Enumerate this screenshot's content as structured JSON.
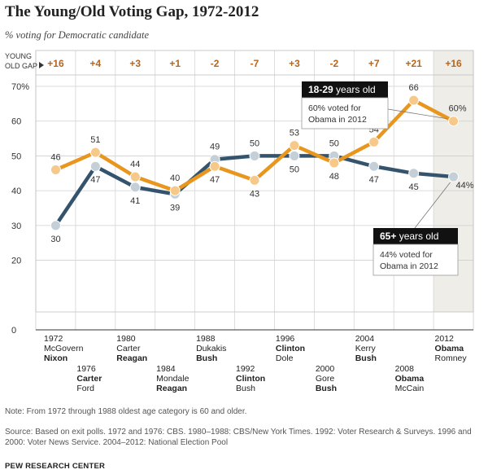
{
  "title": "The Young/Old Voting Gap, 1972-2012",
  "subtitle": "% voting for Democratic candidate",
  "gap_header": [
    "YOUNG",
    "OLD GAP"
  ],
  "colors": {
    "young": "#E8961E",
    "old": "#34546E",
    "gap": "#B5651D",
    "highlight": "#EEEDE7"
  },
  "chart_data": {
    "type": "line",
    "x": [
      1972,
      1976,
      1980,
      1984,
      1988,
      1992,
      1996,
      2000,
      2004,
      2008,
      2012
    ],
    "ylim": [
      0,
      72
    ],
    "yticks": [
      {
        "value": 0,
        "label": "0"
      },
      {
        "value": 20,
        "label": "20"
      },
      {
        "value": 30,
        "label": "30"
      },
      {
        "value": 40,
        "label": "40"
      },
      {
        "value": 50,
        "label": "50"
      },
      {
        "value": 60,
        "label": "60"
      },
      {
        "value": 70,
        "label": "70%"
      }
    ],
    "series": [
      {
        "key": "young",
        "values": [
          46,
          51,
          44,
          40,
          47,
          43,
          53,
          48,
          54,
          66,
          60
        ]
      },
      {
        "key": "old",
        "values": [
          30,
          47,
          41,
          39,
          49,
          50,
          50,
          50,
          47,
          45,
          44
        ]
      }
    ],
    "young_labels": [
      "46",
      "51",
      "44",
      "40",
      "47",
      "43",
      "53",
      "48",
      "54",
      "66",
      "60%"
    ],
    "old_labels": [
      "30",
      "47",
      "41",
      "39",
      "49",
      "50",
      "50",
      "50",
      "47",
      "45",
      "44%"
    ],
    "gap": [
      "+16",
      "+4",
      "+3",
      "+1",
      "-2",
      "-7",
      "+3",
      "-2",
      "+7",
      "+21",
      "+16"
    ],
    "elections": [
      {
        "year": "1972",
        "dem": "McGovern",
        "rep": "Nixon",
        "winner": "rep",
        "tier": "top"
      },
      {
        "year": "1976",
        "dem": "Carter",
        "rep": "Ford",
        "winner": "dem",
        "tier": "bottom"
      },
      {
        "year": "1980",
        "dem": "Carter",
        "rep": "Reagan",
        "winner": "rep",
        "tier": "top"
      },
      {
        "year": "1984",
        "dem": "Mondale",
        "rep": "Reagan",
        "winner": "rep",
        "tier": "bottom"
      },
      {
        "year": "1988",
        "dem": "Dukakis",
        "rep": "Bush",
        "winner": "rep",
        "tier": "top"
      },
      {
        "year": "1992",
        "dem": "Clinton",
        "rep": "Bush",
        "winner": "dem",
        "tier": "bottom"
      },
      {
        "year": "1996",
        "dem": "Clinton",
        "rep": "Dole",
        "winner": "dem",
        "tier": "top"
      },
      {
        "year": "2000",
        "dem": "Gore",
        "rep": "Bush",
        "winner": "rep",
        "tier": "bottom"
      },
      {
        "year": "2004",
        "dem": "Kerry",
        "rep": "Bush",
        "winner": "rep",
        "tier": "top"
      },
      {
        "year": "2008",
        "dem": "Obama",
        "rep": "McCain",
        "winner": "dem",
        "tier": "bottom"
      },
      {
        "year": "2012",
        "dem": "Obama",
        "rep": "Romney",
        "winner": "dem",
        "tier": "top"
      }
    ],
    "callouts": {
      "young": {
        "head_bold": "18-29",
        "head_rest": " years old",
        "body": [
          "60% voted for",
          "Obama in 2012"
        ]
      },
      "old": {
        "head_bold": "65+",
        "head_rest": " years old",
        "body": [
          "44% voted for",
          "Obama in 2012"
        ]
      }
    }
  },
  "note": "Note: From 1972 through 1988 oldest age category is 60 and older.",
  "source": "Source: Based on exit polls. 1972 and 1976: CBS. 1980–1988: CBS/New York Times. 1992: Voter Research & Surveys. 1996 and 2000: Voter News Service. 2004–2012: National Election Pool",
  "brand": "PEW RESEARCH CENTER"
}
